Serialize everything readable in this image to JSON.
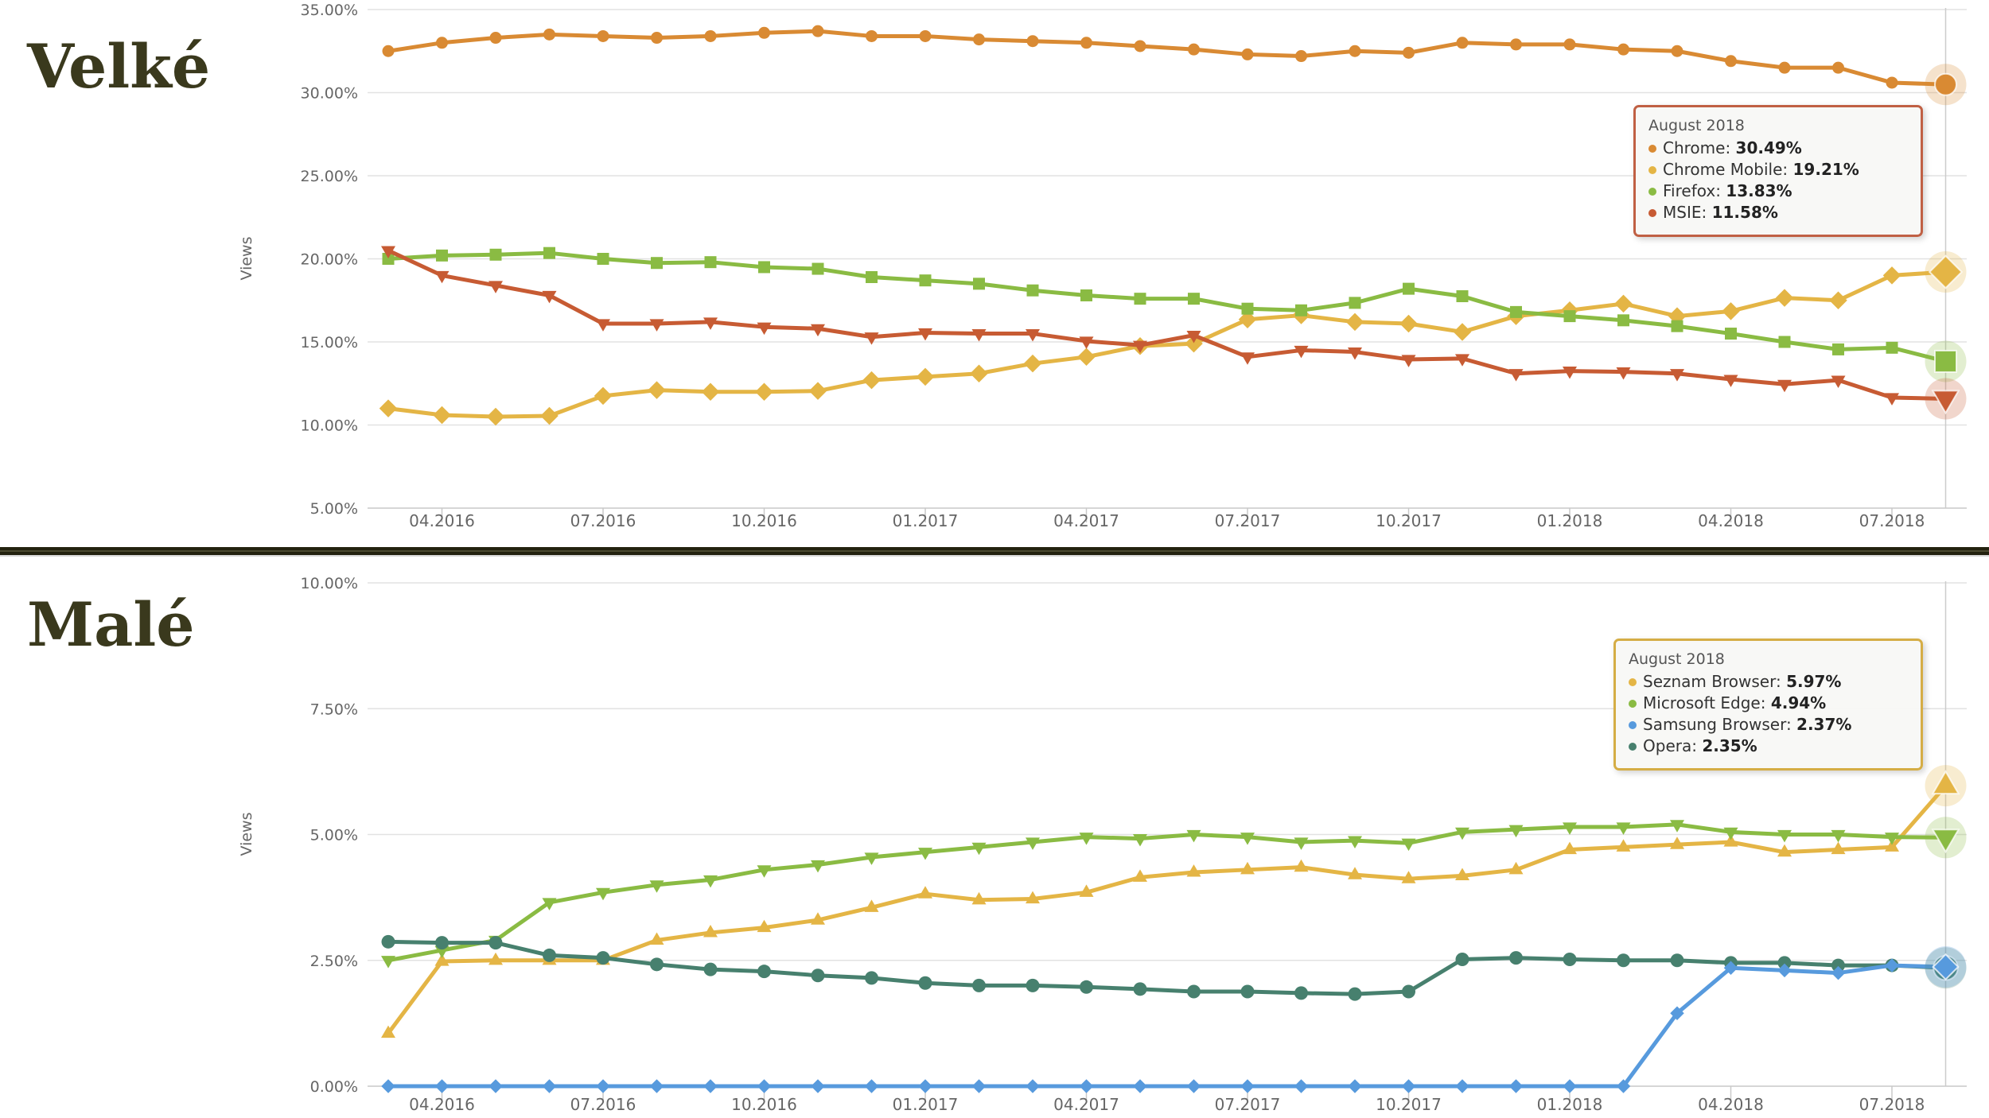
{
  "chart_data": [
    {
      "type": "line",
      "title": "Velké",
      "ylabel": "Views",
      "ylim": [
        5,
        35
      ],
      "y_tick_labels": [
        "35.00%",
        "30.00%",
        "25.00%",
        "20.00%",
        "15.00%",
        "10.00%",
        "5.00%"
      ],
      "y_tick_step": 5,
      "grid": "horizontal",
      "x": [
        "03.2016",
        "04.2016",
        "05.2016",
        "06.2016",
        "07.2016",
        "08.2016",
        "09.2016",
        "10.2016",
        "11.2016",
        "12.2016",
        "01.2017",
        "02.2017",
        "03.2017",
        "04.2017",
        "05.2017",
        "06.2017",
        "07.2017",
        "08.2017",
        "09.2017",
        "10.2017",
        "11.2017",
        "12.2017",
        "01.2018",
        "02.2018",
        "03.2018",
        "04.2018",
        "05.2018",
        "06.2018",
        "07.2018",
        "08.2018"
      ],
      "x_tick_labels": [
        "04.2016",
        "07.2016",
        "10.2016",
        "01.2017",
        "04.2017",
        "07.2017",
        "10.2017",
        "01.2018",
        "04.2018",
        "07.2018"
      ],
      "series": [
        {
          "name": "Chrome",
          "color": "#d98a33",
          "marker": "circle",
          "values": [
            32.5,
            33.0,
            33.3,
            33.5,
            33.4,
            33.3,
            33.4,
            33.6,
            33.7,
            33.4,
            33.4,
            33.2,
            33.1,
            33.0,
            32.8,
            32.6,
            32.3,
            32.2,
            32.5,
            32.4,
            33.0,
            32.9,
            32.9,
            32.6,
            32.5,
            31.9,
            31.5,
            31.5,
            30.6,
            30.49
          ]
        },
        {
          "name": "Chrome Mobile",
          "color": "#e4b545",
          "marker": "diamond",
          "values": [
            11.0,
            10.6,
            10.5,
            10.55,
            11.75,
            12.1,
            12.0,
            12.0,
            12.05,
            12.7,
            12.9,
            13.1,
            13.7,
            14.1,
            14.75,
            14.9,
            16.35,
            16.6,
            16.2,
            16.1,
            15.6,
            16.55,
            16.9,
            17.3,
            16.55,
            16.85,
            17.65,
            17.5,
            19.0,
            19.21
          ]
        },
        {
          "name": "Firefox",
          "color": "#8abb43",
          "marker": "square",
          "values": [
            20.0,
            20.2,
            20.25,
            20.35,
            20.0,
            19.75,
            19.8,
            19.5,
            19.4,
            18.9,
            18.7,
            18.5,
            18.1,
            17.8,
            17.6,
            17.6,
            17.0,
            16.9,
            17.35,
            18.2,
            17.75,
            16.8,
            16.55,
            16.3,
            15.95,
            15.5,
            15.0,
            14.55,
            14.65,
            13.83
          ]
        },
        {
          "name": "MSIE",
          "color": "#c75b33",
          "marker": "triangle-down",
          "values": [
            20.5,
            19.0,
            18.4,
            17.8,
            16.1,
            16.1,
            16.2,
            15.9,
            15.8,
            15.3,
            15.55,
            15.5,
            15.5,
            15.05,
            14.8,
            15.4,
            14.1,
            14.5,
            14.4,
            13.95,
            14.0,
            13.1,
            13.25,
            13.2,
            13.1,
            12.75,
            12.45,
            12.7,
            11.65,
            11.58
          ]
        }
      ],
      "tooltip": {
        "title": "August 2018",
        "border_color": "#c06044",
        "items": [
          {
            "name": "Chrome",
            "value": "30.49%",
            "color": "#d98a33"
          },
          {
            "name": "Chrome Mobile",
            "value": "19.21%",
            "color": "#e4b545"
          },
          {
            "name": "Firefox",
            "value": "13.83%",
            "color": "#8abb43"
          },
          {
            "name": "MSIE",
            "value": "11.58%",
            "color": "#c75b33"
          }
        ]
      }
    },
    {
      "type": "line",
      "title": "Malé",
      "ylabel": "Views",
      "ylim": [
        0,
        10
      ],
      "y_tick_labels": [
        "10.00%",
        "7.50%",
        "5.00%",
        "2.50%",
        "0.00%"
      ],
      "y_tick_step": 2.5,
      "grid": "horizontal",
      "x": [
        "03.2016",
        "04.2016",
        "05.2016",
        "06.2016",
        "07.2016",
        "08.2016",
        "09.2016",
        "10.2016",
        "11.2016",
        "12.2016",
        "01.2017",
        "02.2017",
        "03.2017",
        "04.2017",
        "05.2017",
        "06.2017",
        "07.2017",
        "08.2017",
        "09.2017",
        "10.2017",
        "11.2017",
        "12.2017",
        "01.2018",
        "02.2018",
        "03.2018",
        "04.2018",
        "05.2018",
        "06.2018",
        "07.2018",
        "08.2018"
      ],
      "x_tick_labels": [
        "04.2016",
        "07.2016",
        "10.2016",
        "01.2017",
        "04.2017",
        "07.2017",
        "10.2017",
        "01.2018",
        "04.2018",
        "07.2018"
      ],
      "series": [
        {
          "name": "Seznam Browser",
          "color": "#e4b545",
          "marker": "triangle-up",
          "values": [
            1.05,
            2.48,
            2.5,
            2.5,
            2.5,
            2.9,
            3.05,
            3.15,
            3.3,
            3.55,
            3.82,
            3.7,
            3.72,
            3.85,
            4.15,
            4.25,
            4.3,
            4.35,
            4.2,
            4.12,
            4.18,
            4.3,
            4.7,
            4.75,
            4.8,
            4.85,
            4.65,
            4.7,
            4.75,
            5.97
          ]
        },
        {
          "name": "Microsoft Edge",
          "color": "#8abb43",
          "marker": "triangle-down",
          "values": [
            2.5,
            2.7,
            2.9,
            3.65,
            3.85,
            4.0,
            4.1,
            4.3,
            4.4,
            4.55,
            4.65,
            4.75,
            4.85,
            4.95,
            4.92,
            5.0,
            4.95,
            4.85,
            4.88,
            4.83,
            5.05,
            5.1,
            5.15,
            5.15,
            5.2,
            5.05,
            5.0,
            5.0,
            4.95,
            4.94
          ]
        },
        {
          "name": "Opera",
          "color": "#47806e",
          "marker": "circle",
          "values": [
            2.87,
            2.85,
            2.85,
            2.6,
            2.55,
            2.42,
            2.32,
            2.28,
            2.2,
            2.15,
            2.05,
            2.0,
            2.0,
            1.97,
            1.93,
            1.88,
            1.88,
            1.85,
            1.83,
            1.88,
            2.52,
            2.55,
            2.52,
            2.5,
            2.5,
            2.45,
            2.45,
            2.4,
            2.4,
            2.35
          ]
        },
        {
          "name": "Samsung Browser",
          "color": "#579add",
          "marker": "diamond",
          "values": [
            0,
            0,
            0,
            0,
            0,
            0,
            0,
            0,
            0,
            0,
            0,
            0,
            0,
            0,
            0,
            0,
            0,
            0,
            0,
            0,
            0,
            0,
            0,
            0,
            1.45,
            2.35,
            2.3,
            2.25,
            2.4,
            2.37
          ]
        }
      ],
      "tooltip": {
        "title": "August 2018",
        "border_color": "#d5ad45",
        "items": [
          {
            "name": "Seznam Browser",
            "value": "5.97%",
            "color": "#e4b545"
          },
          {
            "name": "Microsoft Edge",
            "value": "4.94%",
            "color": "#8abb43"
          },
          {
            "name": "Samsung Browser",
            "value": "2.37%",
            "color": "#579add"
          },
          {
            "name": "Opera",
            "value": "2.35%",
            "color": "#47806e"
          }
        ]
      }
    }
  ],
  "colors": {
    "gridline": "#e2e2e2",
    "axis_line": "#c9c9c9",
    "crosshair": "#cccccc",
    "axis_text": "#666666",
    "title_text": "#3a391d"
  }
}
